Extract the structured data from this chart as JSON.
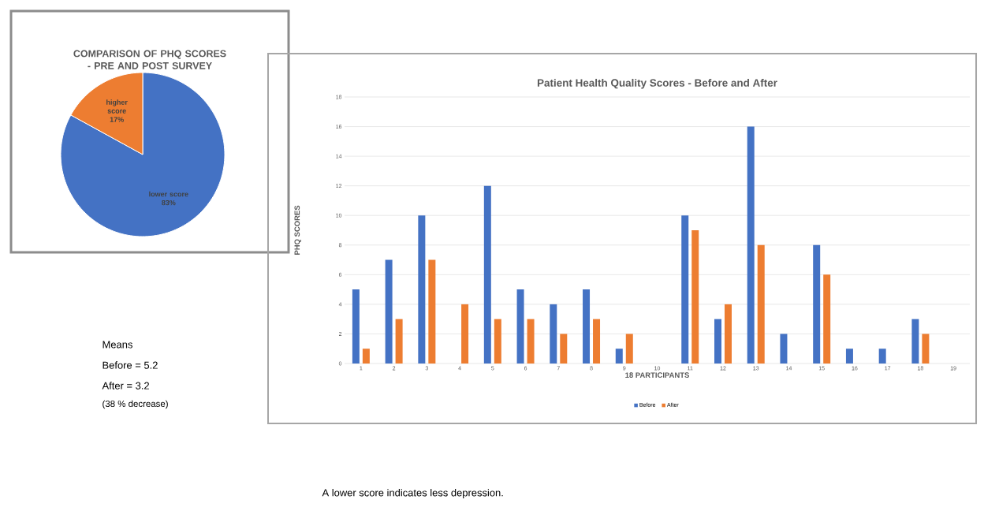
{
  "chart_data": [
    {
      "type": "pie",
      "title": "COMPARISON OF PHQ  SCORES - PRE AND POST SURVEY",
      "categories": [
        "lower score",
        "higher score"
      ],
      "values": [
        83,
        17
      ],
      "colors": [
        "#4472c4",
        "#ed7d31"
      ],
      "value_labels": [
        "83%",
        "17%"
      ]
    },
    {
      "type": "bar",
      "title": "Patient Health Quality Scores - Before and After",
      "xlabel": "18 PARTICIPANTS",
      "ylabel": "PHQ SCORES",
      "categories": [
        "1",
        "2",
        "3",
        "4",
        "5",
        "6",
        "7",
        "8",
        "9",
        "10",
        "11",
        "12",
        "13",
        "14",
        "15",
        "16",
        "17",
        "18",
        "19"
      ],
      "series": [
        {
          "name": "Before",
          "color": "#4472c4",
          "values": [
            5,
            7,
            10,
            null,
            12,
            5,
            4,
            5,
            1,
            null,
            10,
            3,
            16,
            2,
            8,
            1,
            1,
            3,
            null
          ]
        },
        {
          "name": "After",
          "color": "#ed7d31",
          "values": [
            1,
            3,
            7,
            4,
            3,
            3,
            2,
            3,
            2,
            null,
            9,
            4,
            8,
            null,
            6,
            null,
            null,
            2,
            null
          ]
        }
      ],
      "ylim": [
        0,
        18
      ],
      "yticks": [
        0,
        2,
        4,
        6,
        8,
        10,
        12,
        14,
        16,
        18
      ],
      "grid": "y",
      "legend": "bottom",
      "annotations": [
        "Means",
        "Before = 5.2",
        "After   = 3.2",
        "(38 % decrease)",
        "A lower score indicates less depression."
      ]
    }
  ]
}
